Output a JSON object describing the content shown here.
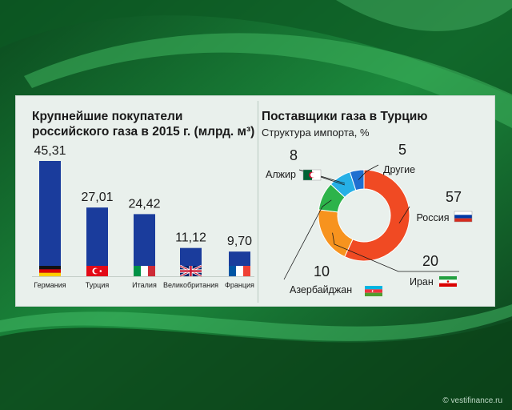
{
  "left": {
    "title_line1": "Крупнейшие покупатели",
    "title_line2": "российского газа в 2015 г. (млрд. м³)"
  },
  "right": {
    "title": "Поставщики газа в Турцию",
    "subtitle": "Структура импорта, %"
  },
  "watermark": "© vestifinance.ru",
  "colors": {
    "bar": "#1a3c9c",
    "russia": "#f04a23",
    "iran": "#f7931e",
    "azerbaijan": "#2db34a",
    "algeria": "#26b0e6",
    "other": "#1f6fd0",
    "background_green": "#1b8a3c",
    "panel": "#e9f0ec"
  },
  "chart_data": [
    {
      "type": "bar",
      "title": "Крупнейшие покупатели российского газа в 2015 г. (млрд. м³)",
      "categories": [
        "Германия",
        "Турция",
        "Италия",
        "Великобритания",
        "Франция"
      ],
      "values": [
        45.31,
        27.01,
        24.42,
        11.12,
        9.7
      ],
      "value_labels": [
        "45,31",
        "27,01",
        "24,42",
        "11,12",
        "9,70"
      ],
      "flags": [
        "germany-flag",
        "turkey-flag",
        "italy-flag",
        "uk-flag",
        "france-flag"
      ],
      "ylim": [
        0,
        45.31
      ],
      "grid": false
    },
    {
      "type": "pie",
      "style": "donut",
      "title": "Поставщики газа в Турцию",
      "subtitle": "Структура импорта, %",
      "slices": [
        {
          "label": "Россия",
          "value": 57,
          "value_label": "57",
          "color": "#f04a23",
          "flag": "russia-flag"
        },
        {
          "label": "Иран",
          "value": 20,
          "value_label": "20",
          "color": "#f7931e",
          "flag": "iran-flag"
        },
        {
          "label": "Азербайджан",
          "value": 10,
          "value_label": "10",
          "color": "#2db34a",
          "flag": "azerbaijan-flag"
        },
        {
          "label": "Алжир",
          "value": 8,
          "value_label": "8",
          "color": "#26b0e6",
          "flag": "algeria-flag"
        },
        {
          "label": "Другие",
          "value": 5,
          "value_label": "5",
          "color": "#1f6fd0",
          "flag": ""
        }
      ]
    }
  ]
}
